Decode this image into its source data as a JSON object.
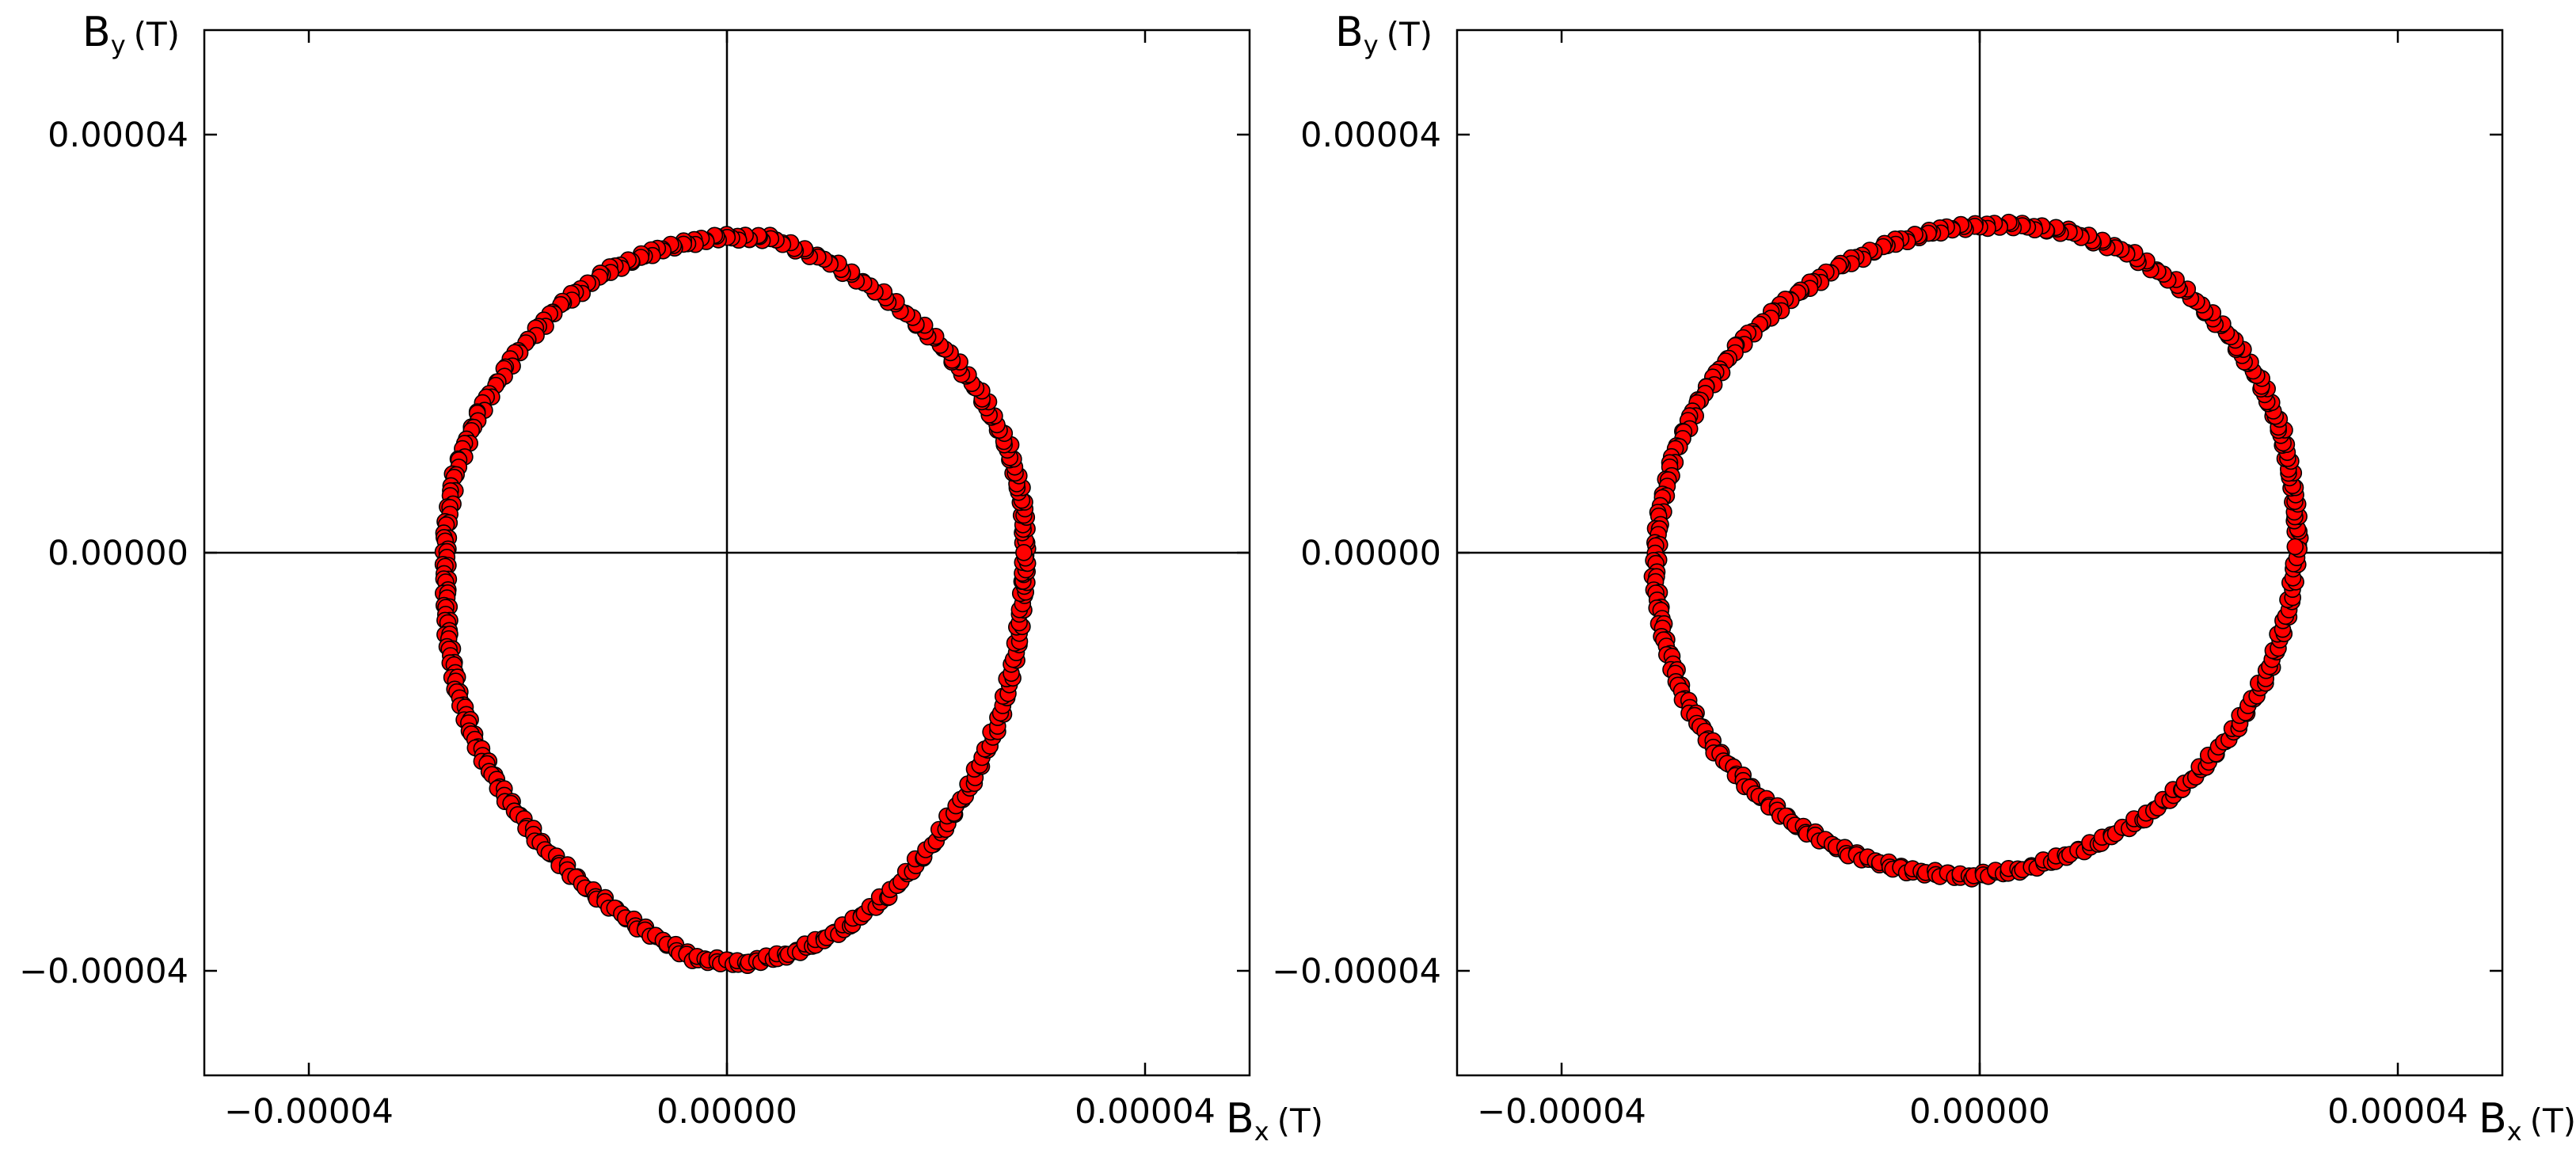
{
  "chart_data": [
    {
      "type": "scatter",
      "xlabel_main": "B",
      "xlabel_sub": "x",
      "xlabel_unit": "(T)",
      "ylabel_main": "B",
      "ylabel_sub": "y",
      "ylabel_unit": "(T)",
      "xlim": [
        -5e-05,
        5e-05
      ],
      "ylim": [
        -5e-05,
        5e-05
      ],
      "xticks": [
        -4e-05,
        0.0,
        4e-05
      ],
      "xtick_labels": [
        "−0.00004",
        "0.00000",
        "0.00004"
      ],
      "yticks": [
        4e-05,
        0.0,
        -4e-05
      ],
      "ytick_labels": [
        "0.00004",
        "0.00000",
        "−0.00004"
      ],
      "marker": "circle",
      "marker_color": "#ff0000",
      "marker_edge": "#000000",
      "zero_lines": true,
      "series": [
        {
          "points": [
            [
              2.86e-05,
              0.0
            ],
            [
              2.83e-05,
              4.9e-06
            ],
            [
              2.69e-05,
              1.01e-05
            ],
            [
              2.42e-05,
              1.53e-05
            ],
            [
              2.04e-05,
              2e-05
            ],
            [
              1.56e-05,
              2.42e-05
            ],
            [
              1.01e-05,
              2.77e-05
            ],
            [
              4.3e-06,
              3.01e-05
            ],
            [
              -1e-06,
              3.02e-05
            ],
            [
              -6.3e-06,
              2.91e-05
            ],
            [
              -1.14e-05,
              2.7e-05
            ],
            [
              -1.61e-05,
              2.36e-05
            ],
            [
              -2.03e-05,
              1.89e-05
            ],
            [
              -2.37e-05,
              1.35e-05
            ],
            [
              -2.6e-05,
              7.8e-06
            ],
            [
              -2.69e-05,
              2e-06
            ],
            [
              -2.69e-05,
              -3e-06
            ],
            [
              -2.67e-05,
              -8e-06
            ],
            [
              -2.58e-05,
              -1.32e-05
            ],
            [
              -2.4e-05,
              -1.83e-05
            ],
            [
              -2.13e-05,
              -2.32e-05
            ],
            [
              -1.77e-05,
              -2.8e-05
            ],
            [
              -1.33e-05,
              -3.22e-05
            ],
            [
              -8.4e-06,
              -3.58e-05
            ],
            [
              -3.3e-06,
              -3.88e-05
            ],
            [
              1.6e-06,
              -3.93e-05
            ],
            [
              6.4e-06,
              -3.83e-05
            ],
            [
              1.1e-05,
              -3.61e-05
            ],
            [
              1.55e-05,
              -3.27e-05
            ],
            [
              1.98e-05,
              -2.78e-05
            ],
            [
              2.33e-05,
              -2.23e-05
            ],
            [
              2.61e-05,
              -1.6e-05
            ],
            [
              2.77e-05,
              -9.5e-06
            ],
            [
              2.84e-05,
              -3.5e-06
            ],
            [
              2.86e-05,
              0.0
            ]
          ]
        }
      ]
    },
    {
      "type": "scatter",
      "xlabel_main": "B",
      "xlabel_sub": "x",
      "xlabel_unit": "(T)",
      "ylabel_main": "B",
      "ylabel_sub": "y",
      "ylabel_unit": "(T)",
      "xlim": [
        -5e-05,
        5e-05
      ],
      "ylim": [
        -5e-05,
        5e-05
      ],
      "xticks": [
        -4e-05,
        0.0,
        4e-05
      ],
      "xtick_labels": [
        "−0.00004",
        "0.00000",
        "0.00004"
      ],
      "yticks": [
        4e-05,
        0.0,
        -4e-05
      ],
      "ytick_labels": [
        "0.00004",
        "0.00000",
        "−0.00004"
      ],
      "marker": "circle",
      "marker_color": "#ff0000",
      "marker_edge": "#000000",
      "zero_lines": true,
      "series": [
        {
          "points": [
            [
              3.05e-05,
              1e-06
            ],
            [
              3e-05,
              6.3e-06
            ],
            [
              2.89e-05,
              1.15e-05
            ],
            [
              2.68e-05,
              1.65e-05
            ],
            [
              2.36e-05,
              2.12e-05
            ],
            [
              1.93e-05,
              2.54e-05
            ],
            [
              1.43e-05,
              2.87e-05
            ],
            [
              8.7e-06,
              3.07e-05
            ],
            [
              3e-06,
              3.14e-05
            ],
            [
              -2.8e-06,
              3.11e-05
            ],
            [
              -8.3e-06,
              2.97e-05
            ],
            [
              -1.37e-05,
              2.73e-05
            ],
            [
              -1.86e-05,
              2.4e-05
            ],
            [
              -2.31e-05,
              1.99e-05
            ],
            [
              -2.67e-05,
              1.49e-05
            ],
            [
              -2.93e-05,
              9.3e-06
            ],
            [
              -3.07e-05,
              3.3e-06
            ],
            [
              -3.11e-05,
              -2.5e-06
            ],
            [
              -3.02e-05,
              -8.2e-06
            ],
            [
              -2.84e-05,
              -1.37e-05
            ],
            [
              -2.55e-05,
              -1.86e-05
            ],
            [
              -2.18e-05,
              -2.27e-05
            ],
            [
              -1.74e-05,
              -2.62e-05
            ],
            [
              -1.24e-05,
              -2.88e-05
            ],
            [
              -7e-06,
              -3.04e-05
            ],
            [
              -1.2e-06,
              -3.1e-05
            ],
            [
              4.7e-06,
              -3.02e-05
            ],
            [
              1.04e-05,
              -2.82e-05
            ],
            [
              1.58e-05,
              -2.53e-05
            ],
            [
              2.04e-05,
              -2.16e-05
            ],
            [
              2.44e-05,
              -1.7e-05
            ],
            [
              2.76e-05,
              -1.15e-05
            ],
            [
              2.96e-05,
              -5.4e-06
            ],
            [
              3.05e-05,
              1e-06
            ]
          ]
        }
      ]
    }
  ]
}
